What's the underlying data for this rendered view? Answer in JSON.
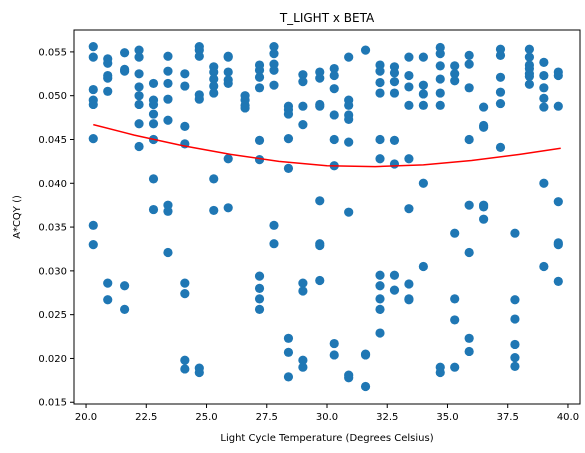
{
  "chart_data": {
    "type": "scatter",
    "title": "T_LIGHT x BETA",
    "xlabel": "Light Cycle Temperature (Degrees Celsius)",
    "ylabel": "A*CQY ()",
    "xlim": [
      19.5,
      40.5
    ],
    "ylim": [
      0.0148,
      0.0575
    ],
    "x_ticks": [
      "20.0",
      "22.5",
      "25.0",
      "27.5",
      "30.0",
      "32.5",
      "35.0",
      "37.5",
      "40.0"
    ],
    "y_ticks": [
      "0.015",
      "0.020",
      "0.025",
      "0.030",
      "0.035",
      "0.040",
      "0.045",
      "0.050",
      "0.055"
    ],
    "grid": false,
    "colors": {
      "points": "#1f77b4",
      "fit": "#ff0000"
    },
    "series": [
      {
        "kind": "scatter",
        "points": [
          [
            20.3,
            0.0556
          ],
          [
            20.3,
            0.0544
          ],
          [
            20.3,
            0.0507
          ],
          [
            20.3,
            0.0495
          ],
          [
            20.3,
            0.049
          ],
          [
            20.3,
            0.0451
          ],
          [
            20.3,
            0.0352
          ],
          [
            20.3,
            0.033
          ],
          [
            20.9,
            0.0542
          ],
          [
            20.9,
            0.0537
          ],
          [
            20.9,
            0.0523
          ],
          [
            20.9,
            0.052
          ],
          [
            20.9,
            0.0505
          ],
          [
            20.9,
            0.0286
          ],
          [
            20.9,
            0.0267
          ],
          [
            21.6,
            0.0549
          ],
          [
            21.6,
            0.053
          ],
          [
            21.6,
            0.0528
          ],
          [
            21.6,
            0.0283
          ],
          [
            21.6,
            0.0256
          ],
          [
            22.2,
            0.0552
          ],
          [
            22.2,
            0.0544
          ],
          [
            22.2,
            0.0525
          ],
          [
            22.2,
            0.051
          ],
          [
            22.2,
            0.05
          ],
          [
            22.2,
            0.049
          ],
          [
            22.2,
            0.0468
          ],
          [
            22.2,
            0.0442
          ],
          [
            22.8,
            0.0514
          ],
          [
            22.8,
            0.0495
          ],
          [
            22.8,
            0.049
          ],
          [
            22.8,
            0.0479
          ],
          [
            22.8,
            0.0468
          ],
          [
            22.8,
            0.045
          ],
          [
            22.8,
            0.0405
          ],
          [
            22.8,
            0.037
          ],
          [
            23.4,
            0.0545
          ],
          [
            23.4,
            0.0528
          ],
          [
            23.4,
            0.0514
          ],
          [
            23.4,
            0.0496
          ],
          [
            23.4,
            0.0472
          ],
          [
            23.4,
            0.0375
          ],
          [
            23.4,
            0.0368
          ],
          [
            23.4,
            0.0321
          ],
          [
            24.1,
            0.0525
          ],
          [
            24.1,
            0.0511
          ],
          [
            24.1,
            0.0465
          ],
          [
            24.1,
            0.0445
          ],
          [
            24.1,
            0.0286
          ],
          [
            24.1,
            0.0274
          ],
          [
            24.1,
            0.0198
          ],
          [
            24.1,
            0.0188
          ],
          [
            24.7,
            0.0556
          ],
          [
            24.7,
            0.0552
          ],
          [
            24.7,
            0.0545
          ],
          [
            24.7,
            0.0501
          ],
          [
            24.7,
            0.0496
          ],
          [
            24.7,
            0.0189
          ],
          [
            24.7,
            0.0184
          ],
          [
            25.3,
            0.0533
          ],
          [
            25.3,
            0.0527
          ],
          [
            25.3,
            0.0519
          ],
          [
            25.3,
            0.0511
          ],
          [
            25.3,
            0.0503
          ],
          [
            25.3,
            0.0405
          ],
          [
            25.3,
            0.0369
          ],
          [
            25.9,
            0.0545
          ],
          [
            25.9,
            0.0544
          ],
          [
            25.9,
            0.0527
          ],
          [
            25.9,
            0.0518
          ],
          [
            25.9,
            0.0514
          ],
          [
            25.9,
            0.0428
          ],
          [
            25.9,
            0.0372
          ],
          [
            26.6,
            0.05
          ],
          [
            26.6,
            0.0495
          ],
          [
            26.6,
            0.0489
          ],
          [
            26.6,
            0.0486
          ],
          [
            27.2,
            0.0535
          ],
          [
            27.2,
            0.0529
          ],
          [
            27.2,
            0.0521
          ],
          [
            27.2,
            0.0509
          ],
          [
            27.2,
            0.0449
          ],
          [
            27.2,
            0.0427
          ],
          [
            27.2,
            0.0294
          ],
          [
            27.2,
            0.028
          ],
          [
            27.2,
            0.0268
          ],
          [
            27.2,
            0.0256
          ],
          [
            27.8,
            0.0556
          ],
          [
            27.8,
            0.0548
          ],
          [
            27.8,
            0.0536
          ],
          [
            27.8,
            0.0529
          ],
          [
            27.8,
            0.0512
          ],
          [
            27.8,
            0.0352
          ],
          [
            27.8,
            0.0331
          ],
          [
            28.4,
            0.0488
          ],
          [
            28.4,
            0.0484
          ],
          [
            28.4,
            0.0479
          ],
          [
            28.4,
            0.0451
          ],
          [
            28.4,
            0.0417
          ],
          [
            28.4,
            0.0223
          ],
          [
            28.4,
            0.0207
          ],
          [
            28.4,
            0.0179
          ],
          [
            29.0,
            0.0524
          ],
          [
            29.0,
            0.0516
          ],
          [
            29.0,
            0.0488
          ],
          [
            29.0,
            0.0467
          ],
          [
            29.0,
            0.0286
          ],
          [
            29.0,
            0.0277
          ],
          [
            29.0,
            0.0198
          ],
          [
            29.0,
            0.019
          ],
          [
            29.7,
            0.0527
          ],
          [
            29.7,
            0.052
          ],
          [
            29.7,
            0.049
          ],
          [
            29.7,
            0.0488
          ],
          [
            29.7,
            0.038
          ],
          [
            29.7,
            0.0331
          ],
          [
            29.7,
            0.0329
          ],
          [
            29.7,
            0.0289
          ],
          [
            30.3,
            0.0531
          ],
          [
            30.3,
            0.0523
          ],
          [
            30.3,
            0.0508
          ],
          [
            30.3,
            0.0478
          ],
          [
            30.3,
            0.045
          ],
          [
            30.3,
            0.042
          ],
          [
            30.3,
            0.0217
          ],
          [
            30.3,
            0.0204
          ],
          [
            30.9,
            0.0544
          ],
          [
            30.9,
            0.0495
          ],
          [
            30.9,
            0.0489
          ],
          [
            30.9,
            0.0478
          ],
          [
            30.9,
            0.0473
          ],
          [
            30.9,
            0.0447
          ],
          [
            30.9,
            0.0367
          ],
          [
            30.9,
            0.0181
          ],
          [
            30.9,
            0.0178
          ],
          [
            31.6,
            0.0552
          ],
          [
            31.6,
            0.0205
          ],
          [
            31.6,
            0.0204
          ],
          [
            31.6,
            0.0168
          ],
          [
            32.2,
            0.0535
          ],
          [
            32.2,
            0.0528
          ],
          [
            32.2,
            0.0515
          ],
          [
            32.2,
            0.0503
          ],
          [
            32.2,
            0.045
          ],
          [
            32.2,
            0.0428
          ],
          [
            32.2,
            0.0295
          ],
          [
            32.2,
            0.0283
          ],
          [
            32.2,
            0.0268
          ],
          [
            32.2,
            0.0256
          ],
          [
            32.2,
            0.0229
          ],
          [
            32.8,
            0.0533
          ],
          [
            32.8,
            0.0526
          ],
          [
            32.8,
            0.0516
          ],
          [
            32.8,
            0.0503
          ],
          [
            32.8,
            0.0449
          ],
          [
            32.8,
            0.0422
          ],
          [
            32.8,
            0.0295
          ],
          [
            32.8,
            0.0278
          ],
          [
            33.4,
            0.0544
          ],
          [
            33.4,
            0.0523
          ],
          [
            33.4,
            0.051
          ],
          [
            33.4,
            0.0489
          ],
          [
            33.4,
            0.0428
          ],
          [
            33.4,
            0.0371
          ],
          [
            33.4,
            0.0285
          ],
          [
            33.4,
            0.0268
          ],
          [
            33.4,
            0.0267
          ],
          [
            34.0,
            0.0544
          ],
          [
            34.0,
            0.0512
          ],
          [
            34.0,
            0.0502
          ],
          [
            34.0,
            0.0489
          ],
          [
            34.0,
            0.04
          ],
          [
            34.0,
            0.0305
          ],
          [
            34.7,
            0.0555
          ],
          [
            34.7,
            0.0548
          ],
          [
            34.7,
            0.0534
          ],
          [
            34.7,
            0.0519
          ],
          [
            34.7,
            0.0503
          ],
          [
            34.7,
            0.0489
          ],
          [
            34.7,
            0.019
          ],
          [
            34.7,
            0.0184
          ],
          [
            35.3,
            0.0534
          ],
          [
            35.3,
            0.0525
          ],
          [
            35.3,
            0.0517
          ],
          [
            35.3,
            0.0343
          ],
          [
            35.3,
            0.0268
          ],
          [
            35.3,
            0.0244
          ],
          [
            35.3,
            0.019
          ],
          [
            35.9,
            0.0546
          ],
          [
            35.9,
            0.0536
          ],
          [
            35.9,
            0.0509
          ],
          [
            35.9,
            0.045
          ],
          [
            35.9,
            0.0375
          ],
          [
            35.9,
            0.0321
          ],
          [
            35.9,
            0.0223
          ],
          [
            35.9,
            0.0208
          ],
          [
            36.5,
            0.0487
          ],
          [
            36.5,
            0.0466
          ],
          [
            36.5,
            0.0464
          ],
          [
            36.5,
            0.0375
          ],
          [
            36.5,
            0.0373
          ],
          [
            36.5,
            0.0359
          ],
          [
            37.2,
            0.0553
          ],
          [
            37.2,
            0.0546
          ],
          [
            37.2,
            0.0521
          ],
          [
            37.2,
            0.0504
          ],
          [
            37.2,
            0.0491
          ],
          [
            37.2,
            0.0441
          ],
          [
            37.8,
            0.0343
          ],
          [
            37.8,
            0.0267
          ],
          [
            37.8,
            0.0245
          ],
          [
            37.8,
            0.0216
          ],
          [
            37.8,
            0.0201
          ],
          [
            37.8,
            0.0191
          ],
          [
            38.4,
            0.0553
          ],
          [
            38.4,
            0.0544
          ],
          [
            38.4,
            0.0535
          ],
          [
            38.4,
            0.0531
          ],
          [
            38.4,
            0.0525
          ],
          [
            38.4,
            0.0522
          ],
          [
            38.4,
            0.0513
          ],
          [
            39.0,
            0.0538
          ],
          [
            39.0,
            0.0523
          ],
          [
            39.0,
            0.0509
          ],
          [
            39.0,
            0.0497
          ],
          [
            39.0,
            0.0487
          ],
          [
            39.0,
            0.04
          ],
          [
            39.0,
            0.0305
          ],
          [
            39.6,
            0.0527
          ],
          [
            39.6,
            0.0523
          ],
          [
            39.6,
            0.0488
          ],
          [
            39.6,
            0.0379
          ],
          [
            39.6,
            0.0332
          ],
          [
            39.6,
            0.033
          ],
          [
            39.6,
            0.0288
          ]
        ]
      },
      {
        "kind": "line",
        "x": [
          20.3,
          22,
          24,
          26,
          28,
          30,
          32,
          34,
          36,
          38,
          39.7
        ],
        "y": [
          0.0467,
          0.0455,
          0.0443,
          0.0433,
          0.0425,
          0.042,
          0.0419,
          0.0421,
          0.0426,
          0.0433,
          0.044
        ]
      }
    ]
  }
}
